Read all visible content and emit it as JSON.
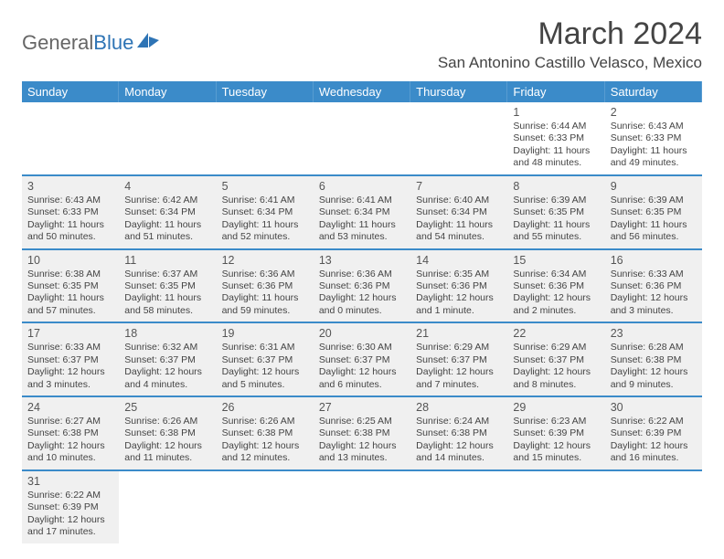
{
  "logo": {
    "part1": "General",
    "part2": "Blue"
  },
  "title": "March 2024",
  "location": "San Antonino Castillo Velasco, Mexico",
  "dayNames": [
    "Sunday",
    "Monday",
    "Tuesday",
    "Wednesday",
    "Thursday",
    "Friday",
    "Saturday"
  ],
  "colors": {
    "headerBlue": "#3b8bc9",
    "shaded": "#f0f0f0",
    "text": "#444444"
  },
  "weeks": [
    [
      {
        "empty": true
      },
      {
        "empty": true
      },
      {
        "empty": true
      },
      {
        "empty": true
      },
      {
        "empty": true
      },
      {
        "day": "1",
        "sunrise": "Sunrise: 6:44 AM",
        "sunset": "Sunset: 6:33 PM",
        "daylight": "Daylight: 11 hours and 48 minutes.",
        "shaded": false
      },
      {
        "day": "2",
        "sunrise": "Sunrise: 6:43 AM",
        "sunset": "Sunset: 6:33 PM",
        "daylight": "Daylight: 11 hours and 49 minutes.",
        "shaded": false
      }
    ],
    [
      {
        "day": "3",
        "sunrise": "Sunrise: 6:43 AM",
        "sunset": "Sunset: 6:33 PM",
        "daylight": "Daylight: 11 hours and 50 minutes.",
        "shaded": true
      },
      {
        "day": "4",
        "sunrise": "Sunrise: 6:42 AM",
        "sunset": "Sunset: 6:34 PM",
        "daylight": "Daylight: 11 hours and 51 minutes.",
        "shaded": true
      },
      {
        "day": "5",
        "sunrise": "Sunrise: 6:41 AM",
        "sunset": "Sunset: 6:34 PM",
        "daylight": "Daylight: 11 hours and 52 minutes.",
        "shaded": true
      },
      {
        "day": "6",
        "sunrise": "Sunrise: 6:41 AM",
        "sunset": "Sunset: 6:34 PM",
        "daylight": "Daylight: 11 hours and 53 minutes.",
        "shaded": true
      },
      {
        "day": "7",
        "sunrise": "Sunrise: 6:40 AM",
        "sunset": "Sunset: 6:34 PM",
        "daylight": "Daylight: 11 hours and 54 minutes.",
        "shaded": true
      },
      {
        "day": "8",
        "sunrise": "Sunrise: 6:39 AM",
        "sunset": "Sunset: 6:35 PM",
        "daylight": "Daylight: 11 hours and 55 minutes.",
        "shaded": true
      },
      {
        "day": "9",
        "sunrise": "Sunrise: 6:39 AM",
        "sunset": "Sunset: 6:35 PM",
        "daylight": "Daylight: 11 hours and 56 minutes.",
        "shaded": true
      }
    ],
    [
      {
        "day": "10",
        "sunrise": "Sunrise: 6:38 AM",
        "sunset": "Sunset: 6:35 PM",
        "daylight": "Daylight: 11 hours and 57 minutes.",
        "shaded": true
      },
      {
        "day": "11",
        "sunrise": "Sunrise: 6:37 AM",
        "sunset": "Sunset: 6:35 PM",
        "daylight": "Daylight: 11 hours and 58 minutes.",
        "shaded": true
      },
      {
        "day": "12",
        "sunrise": "Sunrise: 6:36 AM",
        "sunset": "Sunset: 6:36 PM",
        "daylight": "Daylight: 11 hours and 59 minutes.",
        "shaded": true
      },
      {
        "day": "13",
        "sunrise": "Sunrise: 6:36 AM",
        "sunset": "Sunset: 6:36 PM",
        "daylight": "Daylight: 12 hours and 0 minutes.",
        "shaded": true
      },
      {
        "day": "14",
        "sunrise": "Sunrise: 6:35 AM",
        "sunset": "Sunset: 6:36 PM",
        "daylight": "Daylight: 12 hours and 1 minute.",
        "shaded": true
      },
      {
        "day": "15",
        "sunrise": "Sunrise: 6:34 AM",
        "sunset": "Sunset: 6:36 PM",
        "daylight": "Daylight: 12 hours and 2 minutes.",
        "shaded": true
      },
      {
        "day": "16",
        "sunrise": "Sunrise: 6:33 AM",
        "sunset": "Sunset: 6:36 PM",
        "daylight": "Daylight: 12 hours and 3 minutes.",
        "shaded": true
      }
    ],
    [
      {
        "day": "17",
        "sunrise": "Sunrise: 6:33 AM",
        "sunset": "Sunset: 6:37 PM",
        "daylight": "Daylight: 12 hours and 3 minutes.",
        "shaded": true
      },
      {
        "day": "18",
        "sunrise": "Sunrise: 6:32 AM",
        "sunset": "Sunset: 6:37 PM",
        "daylight": "Daylight: 12 hours and 4 minutes.",
        "shaded": true
      },
      {
        "day": "19",
        "sunrise": "Sunrise: 6:31 AM",
        "sunset": "Sunset: 6:37 PM",
        "daylight": "Daylight: 12 hours and 5 minutes.",
        "shaded": true
      },
      {
        "day": "20",
        "sunrise": "Sunrise: 6:30 AM",
        "sunset": "Sunset: 6:37 PM",
        "daylight": "Daylight: 12 hours and 6 minutes.",
        "shaded": true
      },
      {
        "day": "21",
        "sunrise": "Sunrise: 6:29 AM",
        "sunset": "Sunset: 6:37 PM",
        "daylight": "Daylight: 12 hours and 7 minutes.",
        "shaded": true
      },
      {
        "day": "22",
        "sunrise": "Sunrise: 6:29 AM",
        "sunset": "Sunset: 6:37 PM",
        "daylight": "Daylight: 12 hours and 8 minutes.",
        "shaded": true
      },
      {
        "day": "23",
        "sunrise": "Sunrise: 6:28 AM",
        "sunset": "Sunset: 6:38 PM",
        "daylight": "Daylight: 12 hours and 9 minutes.",
        "shaded": true
      }
    ],
    [
      {
        "day": "24",
        "sunrise": "Sunrise: 6:27 AM",
        "sunset": "Sunset: 6:38 PM",
        "daylight": "Daylight: 12 hours and 10 minutes.",
        "shaded": true
      },
      {
        "day": "25",
        "sunrise": "Sunrise: 6:26 AM",
        "sunset": "Sunset: 6:38 PM",
        "daylight": "Daylight: 12 hours and 11 minutes.",
        "shaded": true
      },
      {
        "day": "26",
        "sunrise": "Sunrise: 6:26 AM",
        "sunset": "Sunset: 6:38 PM",
        "daylight": "Daylight: 12 hours and 12 minutes.",
        "shaded": true
      },
      {
        "day": "27",
        "sunrise": "Sunrise: 6:25 AM",
        "sunset": "Sunset: 6:38 PM",
        "daylight": "Daylight: 12 hours and 13 minutes.",
        "shaded": true
      },
      {
        "day": "28",
        "sunrise": "Sunrise: 6:24 AM",
        "sunset": "Sunset: 6:38 PM",
        "daylight": "Daylight: 12 hours and 14 minutes.",
        "shaded": true
      },
      {
        "day": "29",
        "sunrise": "Sunrise: 6:23 AM",
        "sunset": "Sunset: 6:39 PM",
        "daylight": "Daylight: 12 hours and 15 minutes.",
        "shaded": true
      },
      {
        "day": "30",
        "sunrise": "Sunrise: 6:22 AM",
        "sunset": "Sunset: 6:39 PM",
        "daylight": "Daylight: 12 hours and 16 minutes.",
        "shaded": true
      }
    ],
    [
      {
        "day": "31",
        "sunrise": "Sunrise: 6:22 AM",
        "sunset": "Sunset: 6:39 PM",
        "daylight": "Daylight: 12 hours and 17 minutes.",
        "shaded": true
      },
      {
        "empty": true
      },
      {
        "empty": true
      },
      {
        "empty": true
      },
      {
        "empty": true
      },
      {
        "empty": true
      },
      {
        "empty": true
      }
    ]
  ]
}
